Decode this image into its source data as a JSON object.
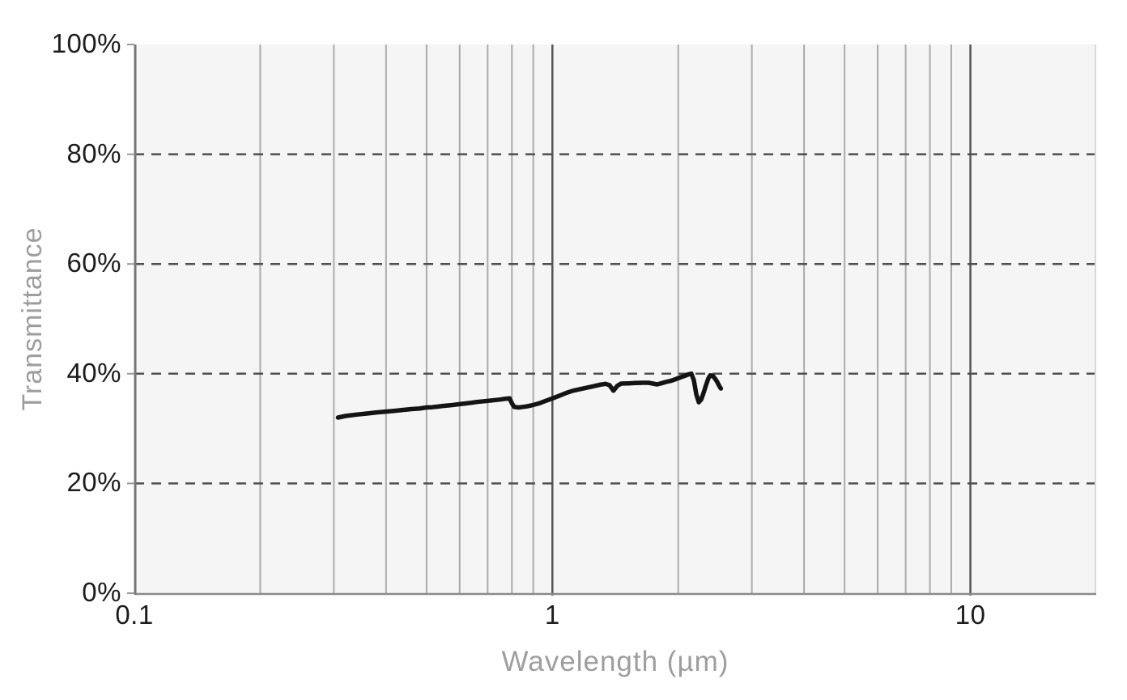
{
  "chart_data": {
    "type": "line",
    "title": "",
    "xlabel": "Wavelength (µm)",
    "ylabel": "Transmittance",
    "x_scale": "log",
    "xlim": [
      0.1,
      20
    ],
    "ylim": [
      0,
      100
    ],
    "grid": true,
    "legend": "none",
    "x_ticks": [
      {
        "value": 0.1,
        "label": "0.1"
      },
      {
        "value": 1,
        "label": "1"
      },
      {
        "value": 10,
        "label": "10"
      }
    ],
    "y_ticks": [
      {
        "value": 0,
        "label": "0%"
      },
      {
        "value": 20,
        "label": "20%"
      },
      {
        "value": 40,
        "label": "40%"
      },
      {
        "value": 60,
        "label": "60%"
      },
      {
        "value": 80,
        "label": "80%"
      },
      {
        "value": 100,
        "label": "100%"
      }
    ],
    "minor_gridlines_x": [
      0.2,
      0.3,
      0.4,
      0.5,
      0.6,
      0.7,
      0.8,
      0.9,
      2,
      3,
      4,
      5,
      6,
      7,
      8,
      9
    ],
    "major_gridlines_x": [
      1,
      10
    ],
    "dashed_gridlines_y": [
      20,
      40,
      60,
      80
    ],
    "series": [
      {
        "name": "transmittance-curve",
        "points_x_um": [
          0.307,
          0.32,
          0.34,
          0.36,
          0.38,
          0.4,
          0.42,
          0.44,
          0.46,
          0.48,
          0.5,
          0.515,
          0.53,
          0.55,
          0.57,
          0.6,
          0.63,
          0.66,
          0.69,
          0.72,
          0.75,
          0.775,
          0.79,
          0.8,
          0.81,
          0.83,
          0.85,
          0.87,
          0.9,
          0.93,
          0.96,
          1.0,
          1.04,
          1.08,
          1.12,
          1.16,
          1.2,
          1.25,
          1.3,
          1.34,
          1.37,
          1.4,
          1.43,
          1.46,
          1.52,
          1.58,
          1.64,
          1.7,
          1.74,
          1.78,
          1.82,
          1.87,
          1.92,
          1.97,
          2.02,
          2.07,
          2.12,
          2.15,
          2.18,
          2.21,
          2.24,
          2.27,
          2.3,
          2.33,
          2.36,
          2.385,
          2.42,
          2.45,
          2.48,
          2.51,
          2.53
        ],
        "values_pct": [
          32.0,
          32.3,
          32.55,
          32.75,
          32.95,
          33.1,
          33.25,
          33.4,
          33.55,
          33.65,
          33.85,
          33.9,
          34.0,
          34.15,
          34.25,
          34.45,
          34.65,
          34.85,
          35.0,
          35.15,
          35.3,
          35.45,
          35.5,
          34.6,
          33.95,
          33.85,
          33.95,
          34.05,
          34.3,
          34.6,
          35.0,
          35.5,
          36.0,
          36.5,
          36.9,
          37.15,
          37.4,
          37.7,
          38.0,
          38.15,
          37.9,
          36.9,
          37.8,
          38.2,
          38.25,
          38.3,
          38.35,
          38.35,
          38.2,
          38.05,
          38.25,
          38.5,
          38.7,
          39.0,
          39.3,
          39.6,
          39.9,
          40.0,
          38.8,
          36.2,
          34.8,
          35.3,
          36.5,
          37.9,
          39.1,
          39.7,
          39.6,
          39.1,
          38.5,
          37.7,
          37.3
        ]
      }
    ]
  },
  "colors": {
    "plot_background": "#f5f5f5",
    "curve": "#141414",
    "dashed_gridline": "#4f4f4f",
    "minor_gridline": "#ababab",
    "major_gridline": "#555555",
    "axis_line": "#757575",
    "tick_mark": "#9a9a9a",
    "bottom_edge": "#8a8a8a",
    "right_edge": "#d9d9d9",
    "tick_label_color": "#1d1d1d",
    "axis_title_color": "#9e9e9e"
  }
}
